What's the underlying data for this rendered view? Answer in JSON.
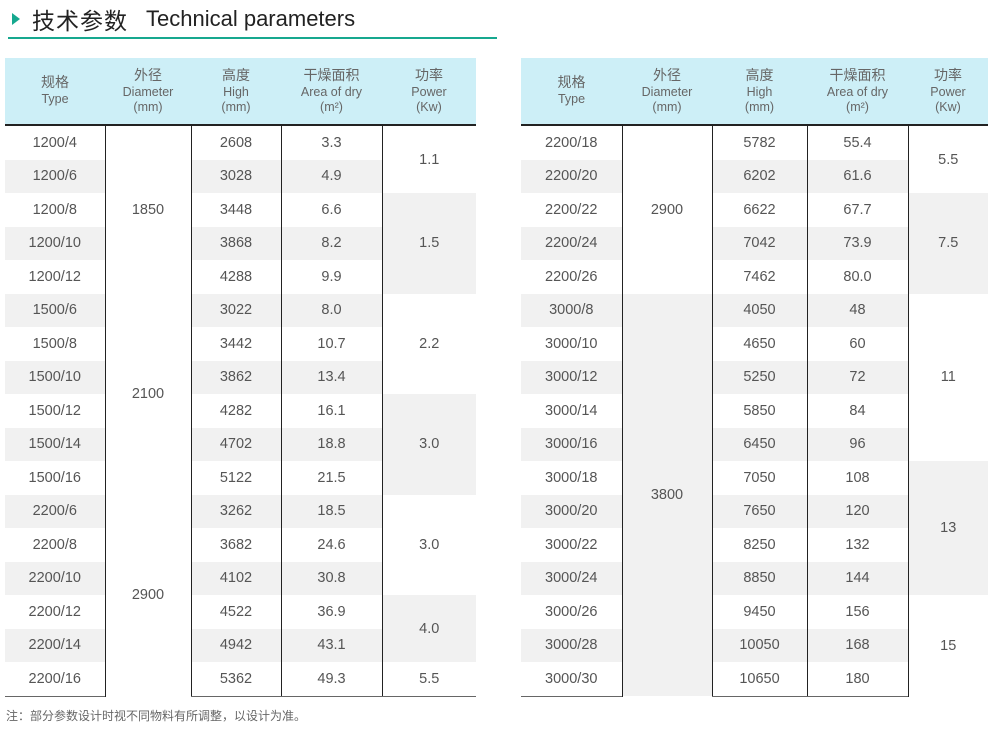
{
  "heading": {
    "cn": "技术参数",
    "en": "Technical parameters"
  },
  "headers": {
    "type": {
      "cn": "规格",
      "en": "Type"
    },
    "diameter": {
      "cn": "外径",
      "en": "Diameter",
      "unit": "(mm)"
    },
    "high": {
      "cn": "高度",
      "en": "High",
      "unit": "(mm)"
    },
    "area": {
      "cn": "干燥面积",
      "en": "Area of dry",
      "unit": "(m²)"
    },
    "power": {
      "cn": "功率",
      "en": "Power",
      "unit": "(Kw)"
    }
  },
  "left": {
    "rows": [
      {
        "type": "1200/4",
        "high": "2608",
        "area": "3.3"
      },
      {
        "type": "1200/6",
        "high": "3028",
        "area": "4.9"
      },
      {
        "type": "1200/8",
        "high": "3448",
        "area": "6.6"
      },
      {
        "type": "1200/10",
        "high": "3868",
        "area": "8.2"
      },
      {
        "type": "1200/12",
        "high": "4288",
        "area": "9.9"
      },
      {
        "type": "1500/6",
        "high": "3022",
        "area": "8.0"
      },
      {
        "type": "1500/8",
        "high": "3442",
        "area": "10.7"
      },
      {
        "type": "1500/10",
        "high": "3862",
        "area": "13.4"
      },
      {
        "type": "1500/12",
        "high": "4282",
        "area": "16.1"
      },
      {
        "type": "1500/14",
        "high": "4702",
        "area": "18.8"
      },
      {
        "type": "1500/16",
        "high": "5122",
        "area": "21.5"
      },
      {
        "type": "2200/6",
        "high": "3262",
        "area": "18.5"
      },
      {
        "type": "2200/8",
        "high": "3682",
        "area": "24.6"
      },
      {
        "type": "2200/10",
        "high": "4102",
        "area": "30.8"
      },
      {
        "type": "2200/12",
        "high": "4522",
        "area": "36.9"
      },
      {
        "type": "2200/14",
        "high": "4942",
        "area": "43.1"
      },
      {
        "type": "2200/16",
        "high": "5362",
        "area": "49.3"
      }
    ],
    "diameter": [
      {
        "value": "1850",
        "rows": 5,
        "shade": "white"
      },
      {
        "value": "2100",
        "rows": 6,
        "shade": "white"
      },
      {
        "value": "2900",
        "rows": 6,
        "shade": "white"
      }
    ],
    "power": [
      {
        "value": "1.1",
        "rows": 2,
        "shade": "white"
      },
      {
        "value": "1.5",
        "rows": 3,
        "shade": "gray"
      },
      {
        "value": "2.2",
        "rows": 3,
        "shade": "white"
      },
      {
        "value": "3.0",
        "rows": 3,
        "shade": "gray"
      },
      {
        "value": "3.0",
        "rows": 3,
        "shade": "white"
      },
      {
        "value": "4.0",
        "rows": 2,
        "shade": "gray"
      },
      {
        "value": "5.5",
        "rows": 1,
        "shade": "white"
      }
    ]
  },
  "right": {
    "rows": [
      {
        "type": "2200/18",
        "high": "5782",
        "area": "55.4"
      },
      {
        "type": "2200/20",
        "high": "6202",
        "area": "61.6"
      },
      {
        "type": "2200/22",
        "high": "6622",
        "area": "67.7"
      },
      {
        "type": "2200/24",
        "high": "7042",
        "area": "73.9"
      },
      {
        "type": "2200/26",
        "high": "7462",
        "area": "80.0"
      },
      {
        "type": "3000/8",
        "high": "4050",
        "area": "48"
      },
      {
        "type": "3000/10",
        "high": "4650",
        "area": "60"
      },
      {
        "type": "3000/12",
        "high": "5250",
        "area": "72"
      },
      {
        "type": "3000/14",
        "high": "5850",
        "area": "84"
      },
      {
        "type": "3000/16",
        "high": "6450",
        "area": "96"
      },
      {
        "type": "3000/18",
        "high": "7050",
        "area": "108"
      },
      {
        "type": "3000/20",
        "high": "7650",
        "area": "120"
      },
      {
        "type": "3000/22",
        "high": "8250",
        "area": "132"
      },
      {
        "type": "3000/24",
        "high": "8850",
        "area": "144"
      },
      {
        "type": "3000/26",
        "high": "9450",
        "area": "156"
      },
      {
        "type": "3000/28",
        "high": "10050",
        "area": "168"
      },
      {
        "type": "3000/30",
        "high": "10650",
        "area": "180"
      }
    ],
    "diameter": [
      {
        "value": "2900",
        "rows": 5,
        "shade": "white"
      },
      {
        "value": "3800",
        "rows": 12,
        "shade": "gray"
      }
    ],
    "power": [
      {
        "value": "5.5",
        "rows": 2,
        "shade": "white"
      },
      {
        "value": "7.5",
        "rows": 3,
        "shade": "gray"
      },
      {
        "value": "11",
        "rows": 5,
        "shade": "white"
      },
      {
        "value": "13",
        "rows": 4,
        "shade": "gray"
      },
      {
        "value": "15",
        "rows": 3,
        "shade": "white"
      }
    ]
  },
  "note": "注：部分参数设计时视不同物料有所调整，以设计为准。"
}
